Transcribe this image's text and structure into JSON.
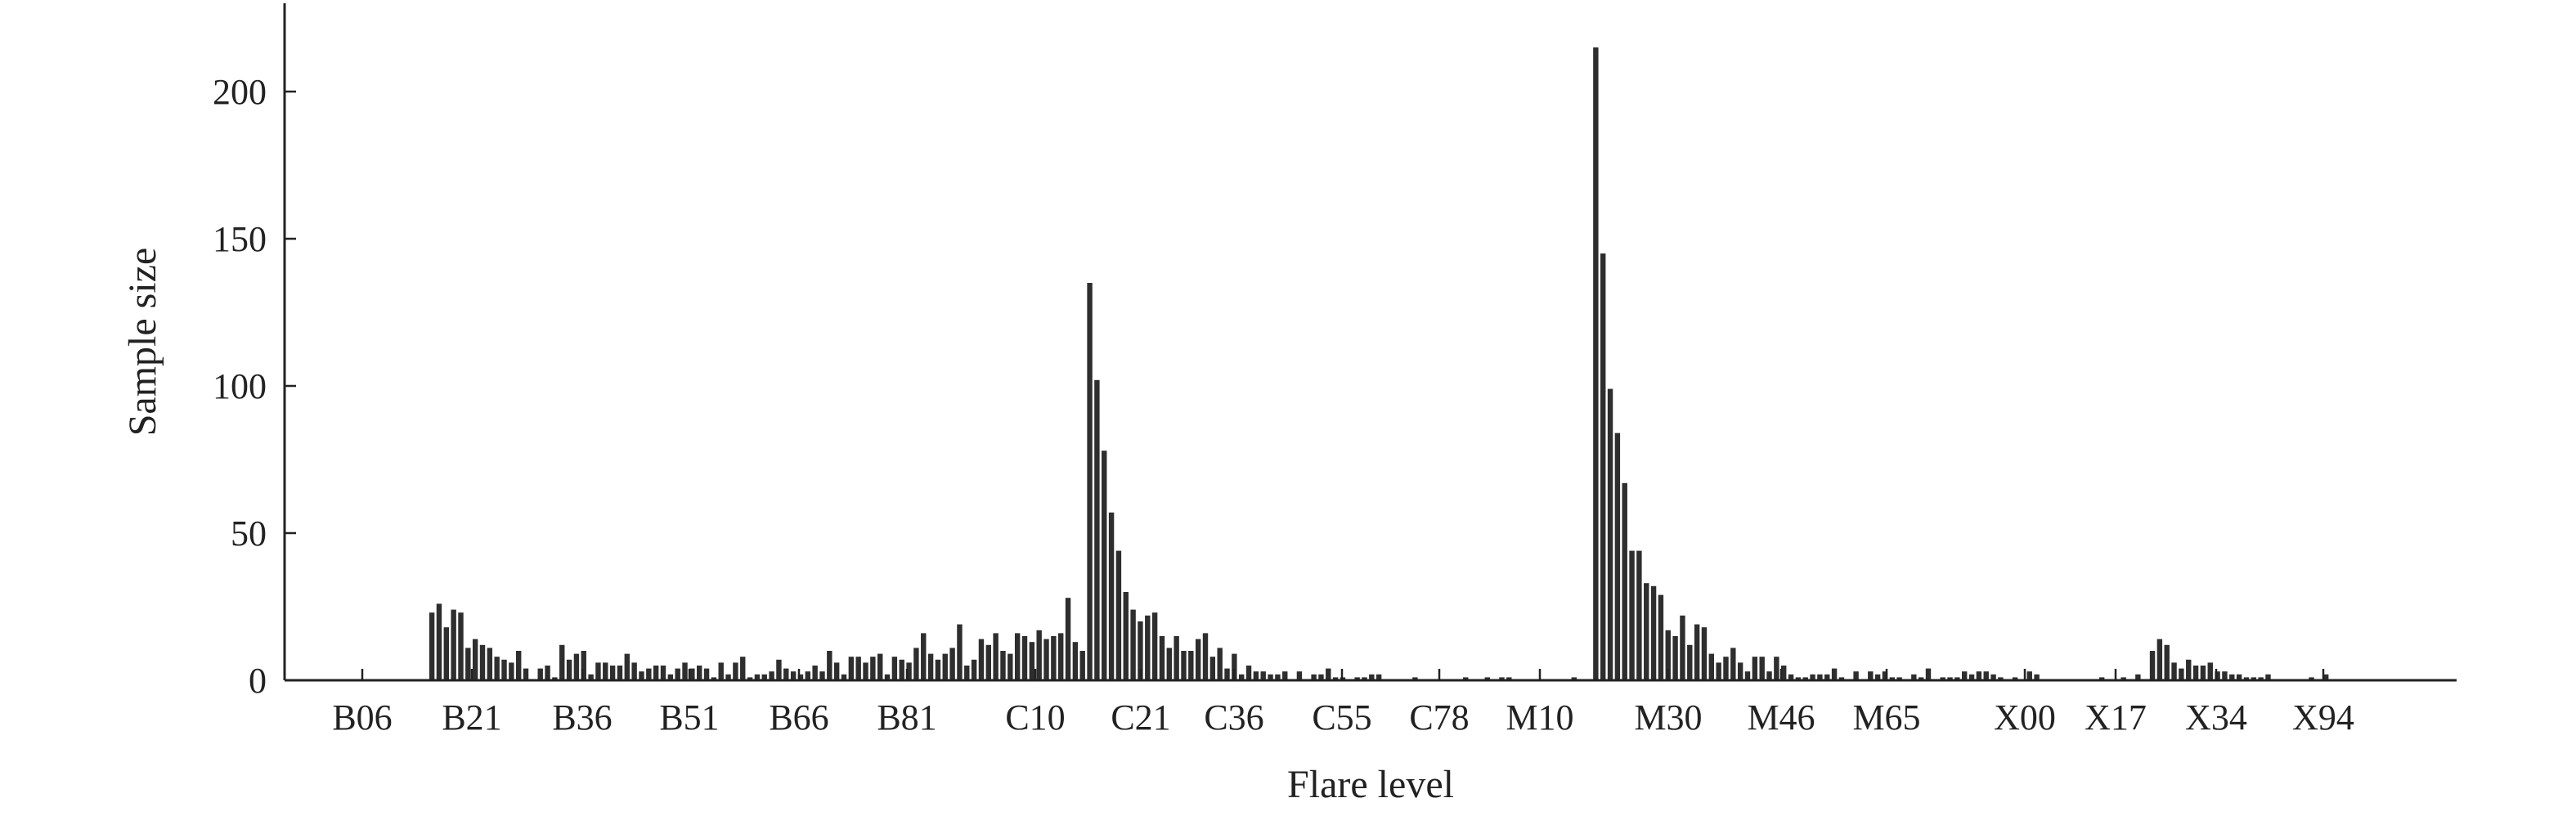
{
  "chart_data": {
    "type": "bar",
    "title": "",
    "xlabel": "Flare level",
    "ylabel": "Sample size",
    "ylim": [
      0,
      230
    ],
    "yticks": [
      0,
      50,
      100,
      150,
      200
    ],
    "grid": false,
    "legend": "none",
    "bar_color": "#2e2e2e",
    "x_tick_labels": [
      "B06",
      "B21",
      "B36",
      "B51",
      "B66",
      "B81",
      "C10",
      "C21",
      "C36",
      "C55",
      "C78",
      "M10",
      "M30",
      "M46",
      "M65",
      "X00",
      "X17",
      "X34",
      "X94"
    ],
    "values": [
      0,
      0,
      0,
      0,
      0,
      0,
      0,
      0,
      0,
      0,
      0,
      0,
      0,
      23,
      26,
      18,
      24,
      23,
      11,
      14,
      12,
      11,
      8,
      7,
      6,
      10,
      4,
      0,
      4,
      5,
      1,
      12,
      7,
      9,
      10,
      2,
      6,
      6,
      5,
      5,
      9,
      6,
      3,
      4,
      5,
      5,
      2,
      4,
      6,
      4,
      5,
      4,
      1,
      6,
      2,
      6,
      8,
      1,
      2,
      2,
      3,
      7,
      4,
      3,
      2,
      3,
      5,
      3,
      10,
      6,
      2,
      8,
      8,
      6,
      8,
      9,
      2,
      8,
      7,
      6,
      11,
      16,
      9,
      7,
      9,
      11,
      19,
      5,
      7,
      14,
      12,
      16,
      10,
      9,
      16,
      15,
      13,
      17,
      14,
      15,
      16,
      28,
      13,
      10,
      135,
      102,
      78,
      57,
      44,
      30,
      24,
      20,
      22,
      23,
      15,
      11,
      15,
      10,
      10,
      14,
      16,
      8,
      11,
      4,
      9,
      2,
      5,
      3,
      3,
      2,
      2,
      3,
      0,
      3,
      0,
      2,
      2,
      4,
      1,
      1,
      0,
      1,
      1,
      2,
      2,
      0,
      0,
      0,
      0,
      1,
      0,
      0,
      0,
      0,
      0,
      0,
      1,
      0,
      0,
      1,
      0,
      1,
      1,
      0,
      0,
      0,
      0,
      0,
      0,
      0,
      0,
      1,
      0,
      0,
      215,
      145,
      99,
      84,
      67,
      44,
      44,
      33,
      32,
      29,
      17,
      15,
      22,
      12,
      19,
      18,
      9,
      6,
      8,
      11,
      6,
      3,
      8,
      8,
      3,
      8,
      5,
      2,
      1,
      1,
      2,
      2,
      2,
      4,
      1,
      0,
      3,
      0,
      3,
      2,
      3,
      1,
      1,
      0,
      2,
      1,
      4,
      0,
      1,
      1,
      1,
      3,
      2,
      3,
      3,
      2,
      1,
      0,
      1,
      0,
      3,
      2,
      0,
      0,
      0,
      0,
      0,
      0,
      0,
      0,
      1,
      0,
      0,
      1,
      0,
      2,
      0,
      10,
      14,
      12,
      6,
      4,
      7,
      5,
      5,
      6,
      3,
      3,
      2,
      2,
      1,
      1,
      1,
      2,
      0,
      0,
      0,
      0,
      0,
      1,
      0,
      2,
      0,
      0,
      0,
      0,
      0,
      0,
      0,
      0,
      0,
      0,
      0,
      0,
      0,
      0,
      0,
      0,
      0,
      0,
      0,
      0,
      0,
      0,
      0,
      0,
      0,
      0,
      0,
      0,
      0,
      0,
      0,
      0,
      0,
      0,
      0,
      0,
      0,
      0,
      0,
      0,
      0,
      0,
      0,
      0,
      0,
      0,
      0
    ]
  }
}
